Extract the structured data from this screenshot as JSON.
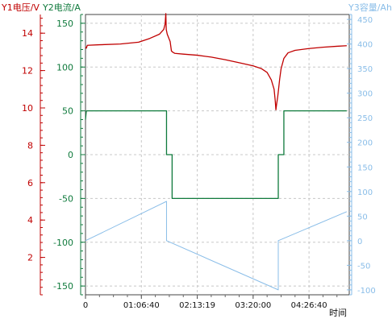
{
  "chart_data": {
    "type": "line",
    "xlabel": "时间",
    "x_tick_labels": [
      "0",
      "01:06:40",
      "02:13:19",
      "03:20:00",
      "04:26:40"
    ],
    "x_tick_seconds": [
      0,
      4000,
      7999,
      12000,
      16000
    ],
    "xlim_seconds": [
      0,
      18880
    ],
    "grid": true,
    "axes": [
      {
        "id": "y1",
        "label": "Y1电压/V",
        "color": "#c00000",
        "ylim": [
          0,
          15
        ],
        "ticks": [
          2,
          4,
          6,
          8,
          10,
          12,
          14
        ]
      },
      {
        "id": "y2",
        "label": "Y2电流/A",
        "color": "#0f7a3c",
        "ylim": [
          -160,
          160
        ],
        "ticks": [
          -150,
          -100,
          -50,
          0,
          50,
          100,
          150
        ]
      },
      {
        "id": "y3",
        "label": "Y3容量/Ah",
        "color": "#89bde8",
        "ylim": [
          -110,
          460
        ],
        "ticks": [
          -100,
          -50,
          0,
          50,
          100,
          150,
          200,
          250,
          300,
          350,
          400,
          450
        ]
      }
    ],
    "series": [
      {
        "axis": "y1",
        "color": "#c00000",
        "points": [
          [
            0,
            13.25
          ],
          [
            60,
            13.2
          ],
          [
            130,
            13.35
          ],
          [
            1000,
            13.38
          ],
          [
            2500,
            13.42
          ],
          [
            3800,
            13.52
          ],
          [
            4600,
            13.72
          ],
          [
            5300,
            13.95
          ],
          [
            5600,
            14.2
          ],
          [
            5700,
            14.5
          ],
          [
            5750,
            15.05
          ],
          [
            5780,
            14.2
          ],
          [
            5850,
            13.95
          ],
          [
            6060,
            13.55
          ],
          [
            6150,
            13.05
          ],
          [
            6250,
            12.98
          ],
          [
            6400,
            12.92
          ],
          [
            7000,
            12.88
          ],
          [
            8000,
            12.82
          ],
          [
            9000,
            12.72
          ],
          [
            10000,
            12.58
          ],
          [
            11000,
            12.42
          ],
          [
            12000,
            12.25
          ],
          [
            12600,
            12.1
          ],
          [
            13000,
            11.9
          ],
          [
            13300,
            11.5
          ],
          [
            13500,
            11.0
          ],
          [
            13580,
            10.4
          ],
          [
            13630,
            9.9
          ],
          [
            13680,
            10.2
          ],
          [
            13760,
            10.6
          ],
          [
            13820,
            11.0
          ],
          [
            13900,
            11.55
          ],
          [
            14000,
            12.1
          ],
          [
            14200,
            12.65
          ],
          [
            14500,
            12.95
          ],
          [
            15000,
            13.08
          ],
          [
            16000,
            13.18
          ],
          [
            17000,
            13.25
          ],
          [
            18000,
            13.3
          ],
          [
            18700,
            13.33
          ]
        ]
      },
      {
        "axis": "y2",
        "color": "#0f7a3c",
        "points": [
          [
            0,
            40
          ],
          [
            60,
            50
          ],
          [
            5800,
            50
          ],
          [
            5800,
            0
          ],
          [
            6200,
            0
          ],
          [
            6200,
            -50
          ],
          [
            13800,
            -50
          ],
          [
            13800,
            0
          ],
          [
            14200,
            0
          ],
          [
            14200,
            50
          ],
          [
            18700,
            50
          ]
        ]
      },
      {
        "axis": "y3",
        "color": "#89bde8",
        "points": [
          [
            0,
            0
          ],
          [
            5800,
            80
          ],
          [
            5800,
            0
          ],
          [
            13800,
            -100
          ],
          [
            13800,
            0
          ],
          [
            18700,
            59
          ]
        ]
      }
    ]
  }
}
